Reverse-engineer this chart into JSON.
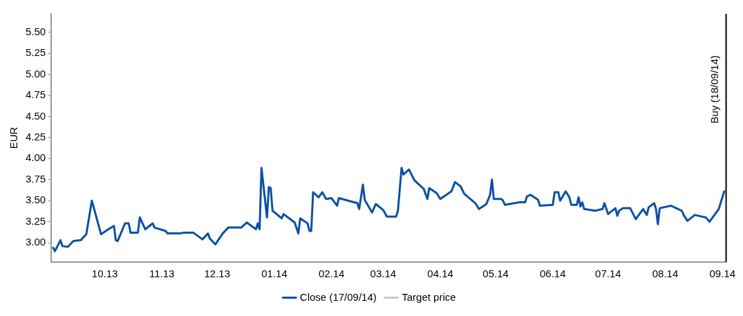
{
  "chart_data": {
    "type": "line",
    "ylabel": "EUR",
    "legend": "bottom",
    "grid": false,
    "marker": "none",
    "line_style": "solid",
    "xlim": [
      "2013-09-17",
      "2014-09-18"
    ],
    "ylim": [
      2.77,
      5.72
    ],
    "xticks": [
      {
        "value": "2013-10-16",
        "label": "10.13"
      },
      {
        "value": "2013-11-16",
        "label": "11.13"
      },
      {
        "value": "2013-12-16",
        "label": "12.13"
      },
      {
        "value": "2014-01-16",
        "label": "01.14"
      },
      {
        "value": "2014-02-16",
        "label": "02.14"
      },
      {
        "value": "2014-03-16",
        "label": "03.14"
      },
      {
        "value": "2014-04-16",
        "label": "04.14"
      },
      {
        "value": "2014-05-16",
        "label": "05.14"
      },
      {
        "value": "2014-06-16",
        "label": "06.14"
      },
      {
        "value": "2014-07-16",
        "label": "07.14"
      },
      {
        "value": "2014-08-16",
        "label": "08.14"
      },
      {
        "value": "2014-09-16",
        "label": "09.14"
      }
    ],
    "yticks": [
      {
        "value": 3,
        "label": "3.00"
      },
      {
        "value": 3.25,
        "label": "3.25"
      },
      {
        "value": 3.5,
        "label": "3.50"
      },
      {
        "value": 3.75,
        "label": "3.75"
      },
      {
        "value": 4,
        "label": "4.00"
      },
      {
        "value": 4.25,
        "label": "4.25"
      },
      {
        "value": 4.5,
        "label": "4.50"
      },
      {
        "value": 4.75,
        "label": "4.75"
      },
      {
        "value": 5,
        "label": "5.00"
      },
      {
        "value": 5.25,
        "label": "5.25"
      },
      {
        "value": 5.5,
        "label": "5.50"
      }
    ],
    "ref_lines": [
      {
        "axis": "x",
        "value": "2014-09-18",
        "label": "Buy (18/09/14)",
        "color": "#000000"
      }
    ],
    "series": [
      {
        "name": "Close (17/09/14)",
        "color": "#0a50a5",
        "x": [
          "2013-09-18",
          "2013-09-19",
          "2013-09-22",
          "2013-09-23",
          "2013-09-26",
          "2013-09-29",
          "2013-10-03",
          "2013-10-06",
          "2013-10-09",
          "2013-10-14",
          "2013-10-18",
          "2013-10-21",
          "2013-10-22",
          "2013-10-23",
          "2013-10-27",
          "2013-10-29",
          "2013-10-30",
          "2013-11-03",
          "2013-11-04",
          "2013-11-07",
          "2013-11-11",
          "2013-11-12",
          "2013-11-18",
          "2013-11-19",
          "2013-11-26",
          "2013-11-28",
          "2013-12-03",
          "2013-12-08",
          "2013-12-11",
          "2013-12-12",
          "2013-12-15",
          "2013-12-19",
          "2013-12-22",
          "2013-12-29",
          "2014-01-01",
          "2014-01-06",
          "2014-01-07",
          "2014-01-08",
          "2014-01-09",
          "2014-01-12",
          "2014-01-13",
          "2014-01-14",
          "2014-01-15",
          "2014-01-20",
          "2014-01-21",
          "2014-01-27",
          "2014-01-29",
          "2014-01-30",
          "2014-02-03",
          "2014-02-04",
          "2014-02-05",
          "2014-02-06",
          "2014-02-09",
          "2014-02-11",
          "2014-02-13",
          "2014-02-16",
          "2014-02-19",
          "2014-02-20",
          "2014-03-02",
          "2014-03-03",
          "2014-03-05",
          "2014-03-06",
          "2014-03-10",
          "2014-03-12",
          "2014-03-16",
          "2014-03-18",
          "2014-03-23",
          "2014-03-24",
          "2014-03-26",
          "2014-03-27",
          "2014-03-30",
          "2014-04-02",
          "2014-04-07",
          "2014-04-09",
          "2014-04-10",
          "2014-04-14",
          "2014-04-16",
          "2014-04-22",
          "2014-04-24",
          "2014-04-27",
          "2014-04-29",
          "2014-05-05",
          "2014-05-07",
          "2014-05-11",
          "2014-05-13",
          "2014-05-14",
          "2014-05-15",
          "2014-05-19",
          "2014-05-20",
          "2014-05-21",
          "2014-05-29",
          "2014-06-01",
          "2014-06-02",
          "2014-06-04",
          "2014-06-08",
          "2014-06-09",
          "2014-06-16",
          "2014-06-17",
          "2014-06-19",
          "2014-06-20",
          "2014-06-23",
          "2014-06-25",
          "2014-06-26",
          "2014-06-29",
          "2014-06-30",
          "2014-07-01",
          "2014-07-02",
          "2014-07-03",
          "2014-07-09",
          "2014-07-13",
          "2014-07-14",
          "2014-07-16",
          "2014-07-17",
          "2014-07-20",
          "2014-07-21",
          "2014-07-22",
          "2014-07-24",
          "2014-07-28",
          "2014-07-31",
          "2014-08-04",
          "2014-08-06",
          "2014-08-07",
          "2014-08-10",
          "2014-08-11",
          "2014-08-12",
          "2014-08-13",
          "2014-08-19",
          "2014-08-25",
          "2014-08-26",
          "2014-08-28",
          "2014-09-01",
          "2014-09-07",
          "2014-09-09",
          "2014-09-11",
          "2014-09-14",
          "2014-09-15",
          "2014-09-17"
        ],
        "values": [
          2.94,
          2.9,
          3.03,
          2.96,
          2.95,
          3.02,
          3.03,
          3.1,
          3.5,
          3.1,
          3.16,
          3.2,
          3.03,
          3.02,
          3.23,
          3.23,
          3.12,
          3.12,
          3.3,
          3.16,
          3.23,
          3.18,
          3.14,
          3.11,
          3.11,
          3.12,
          3.12,
          3.04,
          3.11,
          3.05,
          2.98,
          3.11,
          3.18,
          3.18,
          3.24,
          3.16,
          3.23,
          3.16,
          3.89,
          3.3,
          3.66,
          3.65,
          3.38,
          3.29,
          3.34,
          3.24,
          3.11,
          3.29,
          3.23,
          3.14,
          3.14,
          3.6,
          3.54,
          3.6,
          3.52,
          3.53,
          3.44,
          3.53,
          3.47,
          3.4,
          3.69,
          3.51,
          3.36,
          3.46,
          3.39,
          3.31,
          3.31,
          3.38,
          3.89,
          3.81,
          3.87,
          3.74,
          3.64,
          3.52,
          3.65,
          3.59,
          3.52,
          3.61,
          3.72,
          3.67,
          3.58,
          3.47,
          3.4,
          3.46,
          3.57,
          3.75,
          3.52,
          3.52,
          3.5,
          3.45,
          3.48,
          3.48,
          3.55,
          3.57,
          3.51,
          3.44,
          3.45,
          3.6,
          3.6,
          3.5,
          3.61,
          3.54,
          3.45,
          3.45,
          3.54,
          3.43,
          3.48,
          3.4,
          3.38,
          3.4,
          3.47,
          3.34,
          3.36,
          3.41,
          3.32,
          3.38,
          3.41,
          3.41,
          3.28,
          3.4,
          3.33,
          3.42,
          3.47,
          3.4,
          3.22,
          3.41,
          3.44,
          3.38,
          3.33,
          3.26,
          3.33,
          3.3,
          3.25,
          3.31,
          3.4,
          3.47,
          3.61
        ]
      },
      {
        "name": "Target price",
        "color": "#c8c8c8"
      }
    ]
  }
}
